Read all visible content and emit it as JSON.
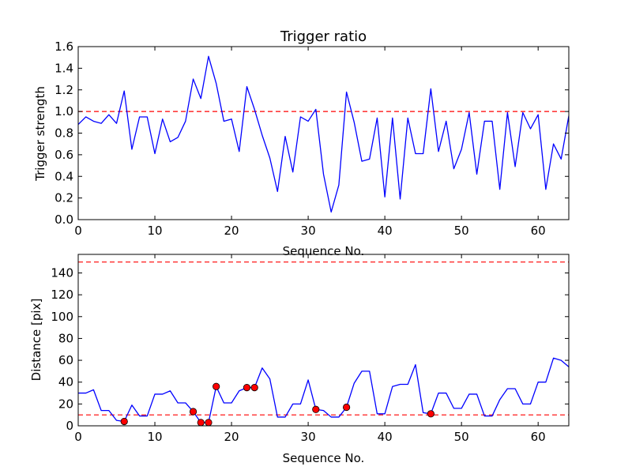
{
  "chart_data": [
    {
      "type": "line",
      "title": "Trigger ratio",
      "xlabel": "Sequence No.",
      "ylabel": "Trigger strength",
      "xlim": [
        0,
        64
      ],
      "ylim": [
        0,
        1.6
      ],
      "xticks": [
        "0",
        "10",
        "20",
        "30",
        "40",
        "50",
        "60"
      ],
      "yticks": [
        "0.0",
        "0.2",
        "0.4",
        "0.6",
        "0.8",
        "1.0",
        "1.2",
        "1.4",
        "1.6"
      ],
      "series": [
        {
          "x": [
            0,
            1,
            2,
            3,
            4,
            5,
            6,
            7,
            8,
            9,
            10,
            11,
            12,
            13,
            14,
            15,
            16,
            17,
            18,
            19,
            20,
            21,
            22,
            23,
            24,
            25,
            26,
            27,
            28,
            29,
            30,
            31,
            32,
            33,
            34,
            35,
            36,
            37,
            38,
            39,
            40,
            41,
            42,
            43,
            44,
            45,
            46,
            47,
            48,
            49,
            50,
            51,
            52,
            53,
            54,
            55,
            56,
            57,
            58,
            59,
            60,
            61,
            62,
            63,
            64
          ],
          "values": [
            0.88,
            0.95,
            0.91,
            0.89,
            0.97,
            0.89,
            1.19,
            0.65,
            0.95,
            0.95,
            0.61,
            0.93,
            0.72,
            0.76,
            0.91,
            1.3,
            1.12,
            1.51,
            1.26,
            0.91,
            0.93,
            0.63,
            1.23,
            1.02,
            0.78,
            0.57,
            0.26,
            0.77,
            0.44,
            0.95,
            0.91,
            1.02,
            0.42,
            0.07,
            0.32,
            1.18,
            0.9,
            0.54,
            0.56,
            0.94,
            0.21,
            0.94,
            0.19,
            0.94,
            0.61,
            0.61,
            1.21,
            0.63,
            0.91,
            0.47,
            0.65,
            0.99,
            0.42,
            0.91,
            0.91,
            0.28,
            0.99,
            0.49,
            0.99,
            0.84,
            0.97,
            0.28,
            0.7,
            0.56,
            0.96
          ],
          "color": "#0000ff"
        }
      ],
      "reference_lines": [
        1.0
      ],
      "reference_color": "#ff0000"
    },
    {
      "type": "line",
      "title": "",
      "xlabel": "Sequence No.",
      "ylabel": "Distance [pix]",
      "xlim": [
        0,
        64
      ],
      "ylim": [
        0,
        157
      ],
      "xticks": [
        "0",
        "10",
        "20",
        "30",
        "40",
        "50",
        "60"
      ],
      "yticks": [
        "0",
        "20",
        "40",
        "60",
        "80",
        "100",
        "120",
        "140"
      ],
      "series": [
        {
          "x": [
            0,
            1,
            2,
            3,
            4,
            5,
            6,
            7,
            8,
            9,
            10,
            11,
            12,
            13,
            14,
            15,
            16,
            17,
            18,
            19,
            20,
            21,
            22,
            23,
            24,
            25,
            26,
            27,
            28,
            29,
            30,
            31,
            32,
            33,
            34,
            35,
            36,
            37,
            38,
            39,
            40,
            41,
            42,
            43,
            44,
            45,
            46,
            47,
            48,
            49,
            50,
            51,
            52,
            53,
            54,
            55,
            56,
            57,
            58,
            59,
            60,
            61,
            62,
            63,
            64
          ],
          "values": [
            30,
            30,
            33,
            14,
            14,
            5,
            4,
            19,
            9,
            9,
            29,
            29,
            32,
            21,
            21,
            13,
            3,
            3,
            36,
            21,
            21,
            32,
            35,
            35,
            53,
            43,
            8,
            8,
            20,
            20,
            42,
            15,
            14,
            8,
            8,
            17,
            39,
            50,
            50,
            11,
            11,
            36,
            38,
            38,
            56,
            12,
            11,
            30,
            30,
            16,
            16,
            29,
            29,
            9,
            9,
            24,
            34,
            34,
            20,
            20,
            40,
            40,
            62,
            60,
            54
          ],
          "color": "#0000ff"
        },
        {
          "name": "markers",
          "x": [
            6,
            15,
            16,
            17,
            18,
            22,
            23,
            31,
            35,
            46
          ],
          "values": [
            4,
            13,
            3,
            3,
            36,
            35,
            35,
            15,
            17,
            11
          ],
          "color": "#ff0000",
          "style": "points"
        }
      ],
      "reference_lines": [
        10,
        150
      ],
      "reference_color": "#ff0000"
    }
  ]
}
